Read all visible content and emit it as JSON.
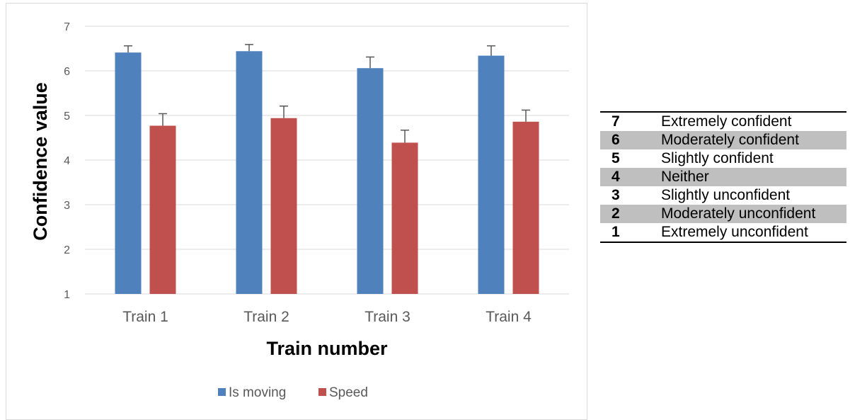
{
  "chart_data": {
    "type": "bar",
    "title": "",
    "xlabel": "Train number",
    "ylabel": "Confidence value",
    "ylim": [
      1,
      7
    ],
    "yticks": [
      1,
      2,
      3,
      4,
      5,
      6,
      7
    ],
    "categories": [
      "Train 1",
      "Train 2",
      "Train 3",
      "Train 4"
    ],
    "series": [
      {
        "name": "Is moving",
        "color": "#4f81bd",
        "values": [
          6.41,
          6.44,
          6.06,
          6.34
        ],
        "error": [
          0.15,
          0.15,
          0.25,
          0.22
        ]
      },
      {
        "name": "Speed",
        "color": "#c0504d",
        "values": [
          4.77,
          4.94,
          4.39,
          4.86
        ],
        "error": [
          0.27,
          0.27,
          0.28,
          0.26
        ]
      }
    ],
    "grid": true,
    "legend": "bottom"
  },
  "scale_table": {
    "rows": [
      {
        "num": "7",
        "label": "Extremely confident"
      },
      {
        "num": "6",
        "label": "Moderately confident"
      },
      {
        "num": "5",
        "label": "Slightly confident"
      },
      {
        "num": "4",
        "label": "Neither"
      },
      {
        "num": "3",
        "label": "Slightly unconfident"
      },
      {
        "num": "2",
        "label": "Moderately unconfident"
      },
      {
        "num": "1",
        "label": "Extremely unconfident"
      }
    ]
  }
}
